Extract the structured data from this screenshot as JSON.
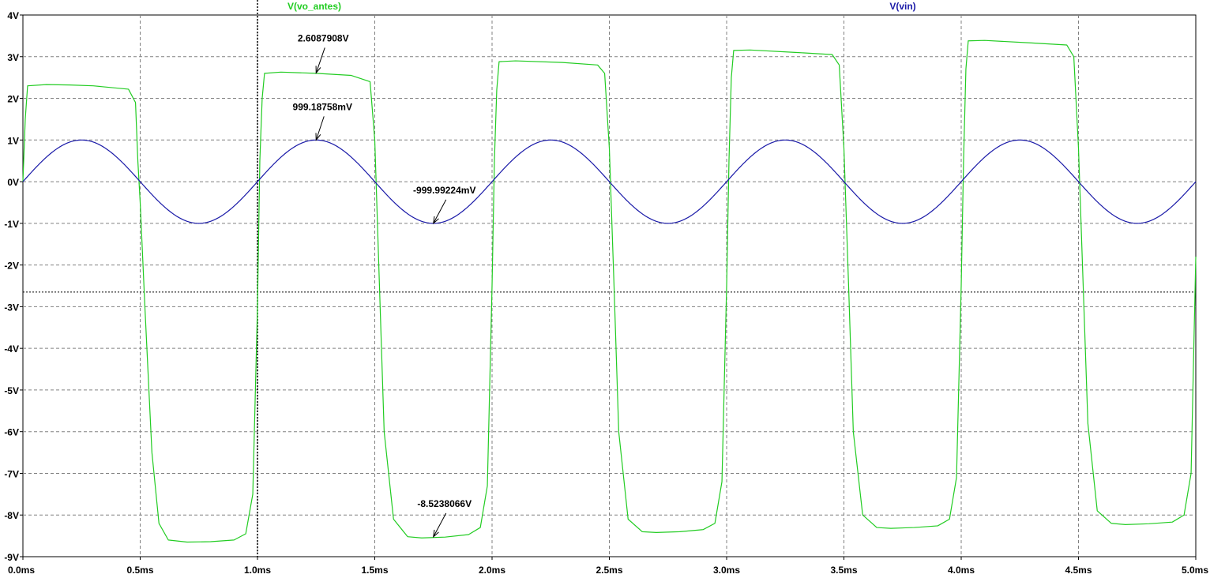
{
  "chart_data": {
    "type": "line",
    "xlabel": "",
    "ylabel": "",
    "xlim": [
      0,
      5
    ],
    "ylim": [
      -9,
      4
    ],
    "grid": true,
    "x_ticks": [
      {
        "value": 0,
        "label": "0.0ms"
      },
      {
        "value": 0.5,
        "label": "0.5ms"
      },
      {
        "value": 1.0,
        "label": "1.0ms"
      },
      {
        "value": 1.5,
        "label": "1.5ms"
      },
      {
        "value": 2.0,
        "label": "2.0ms"
      },
      {
        "value": 2.5,
        "label": "2.5ms"
      },
      {
        "value": 3.0,
        "label": "3.0ms"
      },
      {
        "value": 3.5,
        "label": "3.5ms"
      },
      {
        "value": 4.0,
        "label": "4.0ms"
      },
      {
        "value": 4.5,
        "label": "4.5ms"
      },
      {
        "value": 5.0,
        "label": "5.0ms"
      }
    ],
    "y_ticks": [
      {
        "value": 4,
        "label": "4V"
      },
      {
        "value": 3,
        "label": "3V"
      },
      {
        "value": 2,
        "label": "2V"
      },
      {
        "value": 1,
        "label": "1V"
      },
      {
        "value": 0,
        "label": "0V"
      },
      {
        "value": -1,
        "label": "-1V"
      },
      {
        "value": -2,
        "label": "-2V"
      },
      {
        "value": -3,
        "label": "-3V"
      },
      {
        "value": -4,
        "label": "-4V"
      },
      {
        "value": -5,
        "label": "-5V"
      },
      {
        "value": -6,
        "label": "-6V"
      },
      {
        "value": -7,
        "label": "-7V"
      },
      {
        "value": -8,
        "label": "-8V"
      },
      {
        "value": -9,
        "label": "-9V"
      }
    ],
    "series": [
      {
        "name": "V(vo_antes)",
        "color": "#22cc22",
        "x": [
          0,
          0.01,
          0.02,
          0.1,
          0.2,
          0.3,
          0.45,
          0.48,
          0.49,
          0.5,
          0.52,
          0.55,
          0.58,
          0.62,
          0.7,
          0.8,
          0.9,
          0.95,
          0.98,
          1.0,
          1.01,
          1.02,
          1.03,
          1.1,
          1.25,
          1.4,
          1.48,
          1.5,
          1.52,
          1.54,
          1.58,
          1.64,
          1.7,
          1.8,
          1.9,
          1.95,
          1.98,
          2.0,
          2.01,
          2.02,
          2.03,
          2.1,
          2.3,
          2.45,
          2.48,
          2.5,
          2.52,
          2.54,
          2.58,
          2.64,
          2.7,
          2.8,
          2.9,
          2.95,
          2.98,
          3.0,
          3.01,
          3.02,
          3.03,
          3.1,
          3.3,
          3.45,
          3.48,
          3.5,
          3.52,
          3.54,
          3.58,
          3.64,
          3.7,
          3.8,
          3.9,
          3.95,
          3.98,
          4.0,
          4.01,
          4.02,
          4.03,
          4.1,
          4.3,
          4.45,
          4.48,
          4.5,
          4.52,
          4.54,
          4.58,
          4.64,
          4.7,
          4.8,
          4.9,
          4.95,
          4.98,
          5.0
        ],
        "y": [
          0,
          1.5,
          2.3,
          2.33,
          2.32,
          2.3,
          2.22,
          1.9,
          0.5,
          -0.5,
          -3.0,
          -6.5,
          -8.2,
          -8.6,
          -8.65,
          -8.64,
          -8.6,
          -8.45,
          -7.5,
          -3.0,
          0.5,
          2.0,
          2.6,
          2.63,
          2.6,
          2.55,
          2.4,
          1.0,
          -2.5,
          -6.0,
          -8.1,
          -8.52,
          -8.55,
          -8.53,
          -8.47,
          -8.3,
          -7.3,
          -2.5,
          0.5,
          2.2,
          2.88,
          2.9,
          2.86,
          2.8,
          2.6,
          0.8,
          -2.5,
          -6.0,
          -8.1,
          -8.4,
          -8.42,
          -8.4,
          -8.35,
          -8.2,
          -7.2,
          -2.5,
          0.5,
          2.5,
          3.15,
          3.16,
          3.1,
          3.05,
          2.8,
          0.8,
          -2.5,
          -6.0,
          -8.0,
          -8.3,
          -8.32,
          -8.3,
          -8.26,
          -8.1,
          -7.1,
          -2.5,
          0.5,
          2.7,
          3.38,
          3.39,
          3.33,
          3.28,
          3.0,
          0.8,
          -2.5,
          -5.8,
          -7.9,
          -8.2,
          -8.23,
          -8.21,
          -8.17,
          -8.0,
          -7.0,
          -1.8
        ]
      },
      {
        "name": "V(vin)",
        "color": "#1a1aa8",
        "function": "sin",
        "amplitude": 1,
        "frequency_khz": 1,
        "x_range": [
          0,
          5
        ]
      }
    ],
    "cursors": {
      "vertical_x": 1.0,
      "horizontal_y": -2.65
    },
    "annotations": [
      {
        "text": "2.6087908V",
        "x": 1.25,
        "y": 2.6087908
      },
      {
        "text": "999.18758mV",
        "x": 1.25,
        "y": 0.99918758
      },
      {
        "text": "-999.99224mV",
        "x": 1.75,
        "y": -0.99999224
      },
      {
        "text": "-8.5238066V",
        "x": 1.75,
        "y": -8.5238066
      }
    ]
  }
}
